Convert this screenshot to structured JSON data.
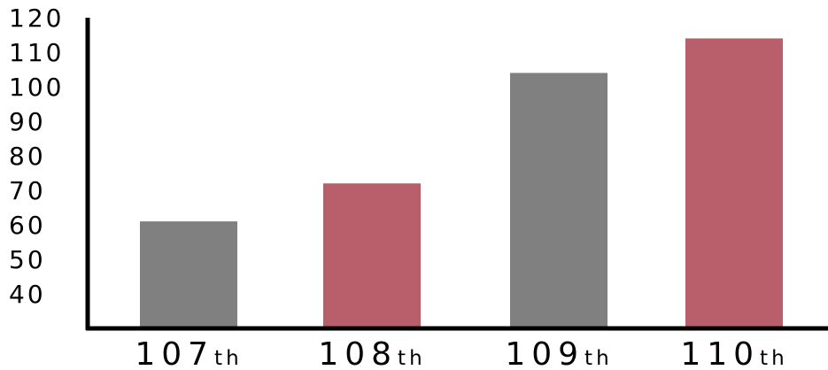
{
  "chart_data": {
    "type": "bar",
    "categories": [
      "107th",
      "108th",
      "109th",
      "110th"
    ],
    "category_labels": [
      {
        "number": "107",
        "suffix": "th"
      },
      {
        "number": "108",
        "suffix": "th"
      },
      {
        "number": "109",
        "suffix": "th"
      },
      {
        "number": "110",
        "suffix": "th"
      }
    ],
    "values": [
      61,
      72,
      104,
      114
    ],
    "bar_colors": [
      "#808080",
      "#b95f6b",
      "#808080",
      "#b95f6b"
    ],
    "y_ticks": [
      40,
      50,
      60,
      70,
      80,
      90,
      100,
      110,
      120
    ],
    "y_tick_labels": [
      "40",
      "50",
      "60",
      "70",
      "80",
      "90",
      "100",
      "110",
      "120"
    ],
    "ylim": [
      30,
      120
    ],
    "grid": false,
    "title": "",
    "xlabel": "",
    "ylabel": "",
    "axis_color": "#000000"
  }
}
